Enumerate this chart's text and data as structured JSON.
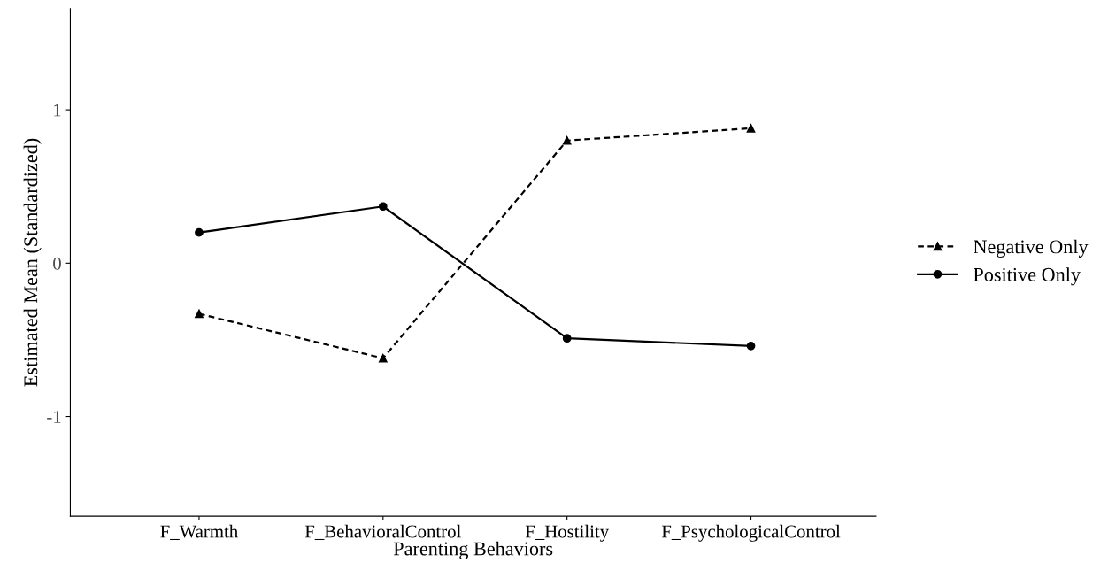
{
  "chart_data": {
    "type": "line",
    "xlabel": "Parenting Behaviors",
    "ylabel": "Estimated Mean (Standardized)",
    "categories": [
      "F_Warmth",
      "F_BehavioralControl",
      "F_Hostility",
      "F_PsychologicalControl"
    ],
    "series": [
      {
        "name": "Negative Only",
        "color": "#000000",
        "marker": "triangle",
        "line_style": "dashed",
        "values": [
          -0.33,
          -0.62,
          0.8,
          0.88
        ]
      },
      {
        "name": "Positive Only",
        "color": "#000000",
        "marker": "circle",
        "line_style": "solid",
        "values": [
          0.2,
          0.37,
          -0.49,
          -0.54
        ]
      }
    ],
    "ylim": [
      -1.65,
      1.66
    ],
    "yticks": [
      -1,
      0,
      1
    ],
    "grid": false,
    "legend": "right"
  }
}
